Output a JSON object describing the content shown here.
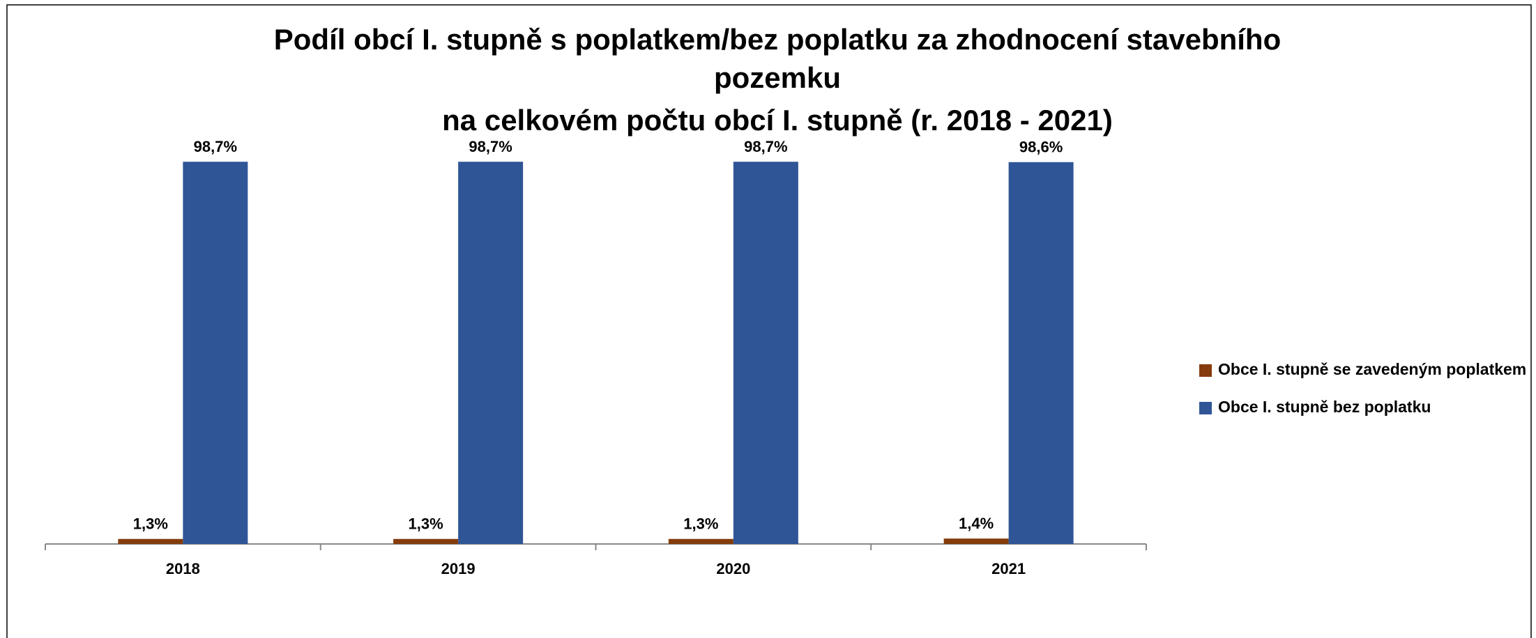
{
  "chart_data": {
    "type": "bar",
    "title": [
      "Podíl obcí I. stupně s poplatkem/bez poplatku za zhodnocení stavebního",
      "pozemku",
      "na celkovém počtu obcí I. stupně (r. 2018 - 2021)"
    ],
    "categories": [
      "2018",
      "2019",
      "2020",
      "2021"
    ],
    "series": [
      {
        "name": "Obce I. stupně se zavedeným poplatkem",
        "color": "#843c0c",
        "values": [
          1.3,
          1.3,
          1.3,
          1.4
        ],
        "value_labels": [
          "1,3%",
          "1,3%",
          "1,3%",
          "1,4%"
        ]
      },
      {
        "name": "Obce I. stupně bez poplatku",
        "color": "#2f5597",
        "values": [
          98.7,
          98.7,
          98.7,
          98.6
        ],
        "value_labels": [
          "98,7%",
          "98,7%",
          "98,7%",
          "98,6%"
        ]
      }
    ],
    "legend": "right"
  }
}
